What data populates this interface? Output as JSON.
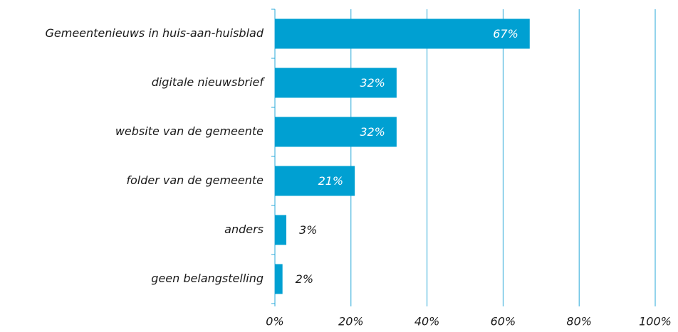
{
  "chart_data": {
    "type": "bar",
    "orientation": "horizontal",
    "categories": [
      "Gemeentenieuws in huis-aan-huisblad",
      "digitale nieuwsbrief",
      "website van de gemeente",
      "folder van de gemeente",
      "anders",
      "geen belangstelling"
    ],
    "values": [
      67,
      32,
      32,
      21,
      3,
      2
    ],
    "value_labels": [
      "67%",
      "32%",
      "32%",
      "21%",
      "3%",
      "2%"
    ],
    "color": "#00a0d2",
    "xlim": [
      0,
      100
    ],
    "xticks": [
      {
        "value": 0,
        "label": "0%"
      },
      {
        "value": 20,
        "label": "20%"
      },
      {
        "value": 40,
        "label": "40%"
      },
      {
        "value": 60,
        "label": "60%"
      },
      {
        "value": 80,
        "label": "80%"
      },
      {
        "value": 100,
        "label": "100%"
      }
    ],
    "grid": true
  }
}
